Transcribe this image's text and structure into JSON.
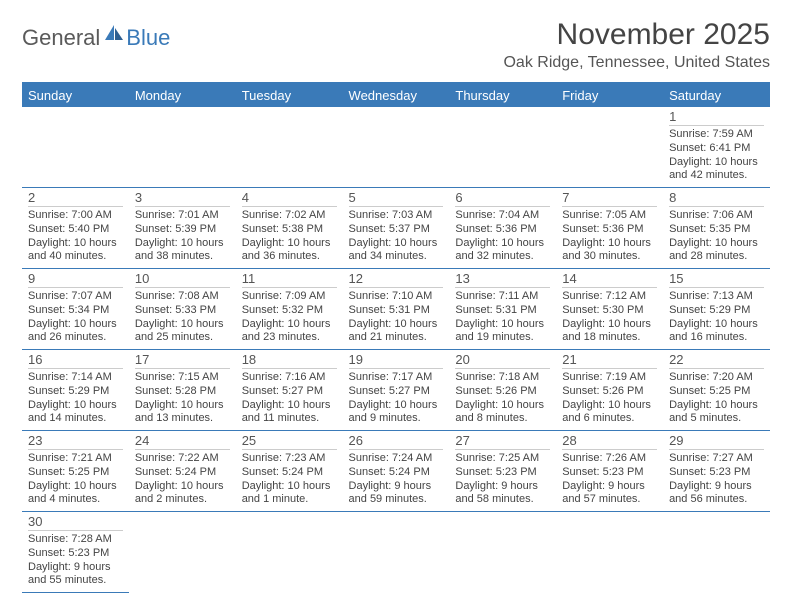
{
  "brand": {
    "part1": "General",
    "part2": "Blue"
  },
  "title": "November 2025",
  "location": "Oak Ridge, Tennessee, United States",
  "colors": {
    "accent": "#3a7ab8",
    "text": "#444444",
    "bg": "#ffffff",
    "divider": "#cccccc"
  },
  "weekdays": [
    "Sunday",
    "Monday",
    "Tuesday",
    "Wednesday",
    "Thursday",
    "Friday",
    "Saturday"
  ],
  "leading_blanks": 6,
  "trailing_blanks": 6,
  "days": [
    {
      "n": "1",
      "sunrise": "Sunrise: 7:59 AM",
      "sunset": "Sunset: 6:41 PM",
      "daylight": "Daylight: 10 hours and 42 minutes."
    },
    {
      "n": "2",
      "sunrise": "Sunrise: 7:00 AM",
      "sunset": "Sunset: 5:40 PM",
      "daylight": "Daylight: 10 hours and 40 minutes."
    },
    {
      "n": "3",
      "sunrise": "Sunrise: 7:01 AM",
      "sunset": "Sunset: 5:39 PM",
      "daylight": "Daylight: 10 hours and 38 minutes."
    },
    {
      "n": "4",
      "sunrise": "Sunrise: 7:02 AM",
      "sunset": "Sunset: 5:38 PM",
      "daylight": "Daylight: 10 hours and 36 minutes."
    },
    {
      "n": "5",
      "sunrise": "Sunrise: 7:03 AM",
      "sunset": "Sunset: 5:37 PM",
      "daylight": "Daylight: 10 hours and 34 minutes."
    },
    {
      "n": "6",
      "sunrise": "Sunrise: 7:04 AM",
      "sunset": "Sunset: 5:36 PM",
      "daylight": "Daylight: 10 hours and 32 minutes."
    },
    {
      "n": "7",
      "sunrise": "Sunrise: 7:05 AM",
      "sunset": "Sunset: 5:36 PM",
      "daylight": "Daylight: 10 hours and 30 minutes."
    },
    {
      "n": "8",
      "sunrise": "Sunrise: 7:06 AM",
      "sunset": "Sunset: 5:35 PM",
      "daylight": "Daylight: 10 hours and 28 minutes."
    },
    {
      "n": "9",
      "sunrise": "Sunrise: 7:07 AM",
      "sunset": "Sunset: 5:34 PM",
      "daylight": "Daylight: 10 hours and 26 minutes."
    },
    {
      "n": "10",
      "sunrise": "Sunrise: 7:08 AM",
      "sunset": "Sunset: 5:33 PM",
      "daylight": "Daylight: 10 hours and 25 minutes."
    },
    {
      "n": "11",
      "sunrise": "Sunrise: 7:09 AM",
      "sunset": "Sunset: 5:32 PM",
      "daylight": "Daylight: 10 hours and 23 minutes."
    },
    {
      "n": "12",
      "sunrise": "Sunrise: 7:10 AM",
      "sunset": "Sunset: 5:31 PM",
      "daylight": "Daylight: 10 hours and 21 minutes."
    },
    {
      "n": "13",
      "sunrise": "Sunrise: 7:11 AM",
      "sunset": "Sunset: 5:31 PM",
      "daylight": "Daylight: 10 hours and 19 minutes."
    },
    {
      "n": "14",
      "sunrise": "Sunrise: 7:12 AM",
      "sunset": "Sunset: 5:30 PM",
      "daylight": "Daylight: 10 hours and 18 minutes."
    },
    {
      "n": "15",
      "sunrise": "Sunrise: 7:13 AM",
      "sunset": "Sunset: 5:29 PM",
      "daylight": "Daylight: 10 hours and 16 minutes."
    },
    {
      "n": "16",
      "sunrise": "Sunrise: 7:14 AM",
      "sunset": "Sunset: 5:29 PM",
      "daylight": "Daylight: 10 hours and 14 minutes."
    },
    {
      "n": "17",
      "sunrise": "Sunrise: 7:15 AM",
      "sunset": "Sunset: 5:28 PM",
      "daylight": "Daylight: 10 hours and 13 minutes."
    },
    {
      "n": "18",
      "sunrise": "Sunrise: 7:16 AM",
      "sunset": "Sunset: 5:27 PM",
      "daylight": "Daylight: 10 hours and 11 minutes."
    },
    {
      "n": "19",
      "sunrise": "Sunrise: 7:17 AM",
      "sunset": "Sunset: 5:27 PM",
      "daylight": "Daylight: 10 hours and 9 minutes."
    },
    {
      "n": "20",
      "sunrise": "Sunrise: 7:18 AM",
      "sunset": "Sunset: 5:26 PM",
      "daylight": "Daylight: 10 hours and 8 minutes."
    },
    {
      "n": "21",
      "sunrise": "Sunrise: 7:19 AM",
      "sunset": "Sunset: 5:26 PM",
      "daylight": "Daylight: 10 hours and 6 minutes."
    },
    {
      "n": "22",
      "sunrise": "Sunrise: 7:20 AM",
      "sunset": "Sunset: 5:25 PM",
      "daylight": "Daylight: 10 hours and 5 minutes."
    },
    {
      "n": "23",
      "sunrise": "Sunrise: 7:21 AM",
      "sunset": "Sunset: 5:25 PM",
      "daylight": "Daylight: 10 hours and 4 minutes."
    },
    {
      "n": "24",
      "sunrise": "Sunrise: 7:22 AM",
      "sunset": "Sunset: 5:24 PM",
      "daylight": "Daylight: 10 hours and 2 minutes."
    },
    {
      "n": "25",
      "sunrise": "Sunrise: 7:23 AM",
      "sunset": "Sunset: 5:24 PM",
      "daylight": "Daylight: 10 hours and 1 minute."
    },
    {
      "n": "26",
      "sunrise": "Sunrise: 7:24 AM",
      "sunset": "Sunset: 5:24 PM",
      "daylight": "Daylight: 9 hours and 59 minutes."
    },
    {
      "n": "27",
      "sunrise": "Sunrise: 7:25 AM",
      "sunset": "Sunset: 5:23 PM",
      "daylight": "Daylight: 9 hours and 58 minutes."
    },
    {
      "n": "28",
      "sunrise": "Sunrise: 7:26 AM",
      "sunset": "Sunset: 5:23 PM",
      "daylight": "Daylight: 9 hours and 57 minutes."
    },
    {
      "n": "29",
      "sunrise": "Sunrise: 7:27 AM",
      "sunset": "Sunset: 5:23 PM",
      "daylight": "Daylight: 9 hours and 56 minutes."
    },
    {
      "n": "30",
      "sunrise": "Sunrise: 7:28 AM",
      "sunset": "Sunset: 5:23 PM",
      "daylight": "Daylight: 9 hours and 55 minutes."
    }
  ]
}
